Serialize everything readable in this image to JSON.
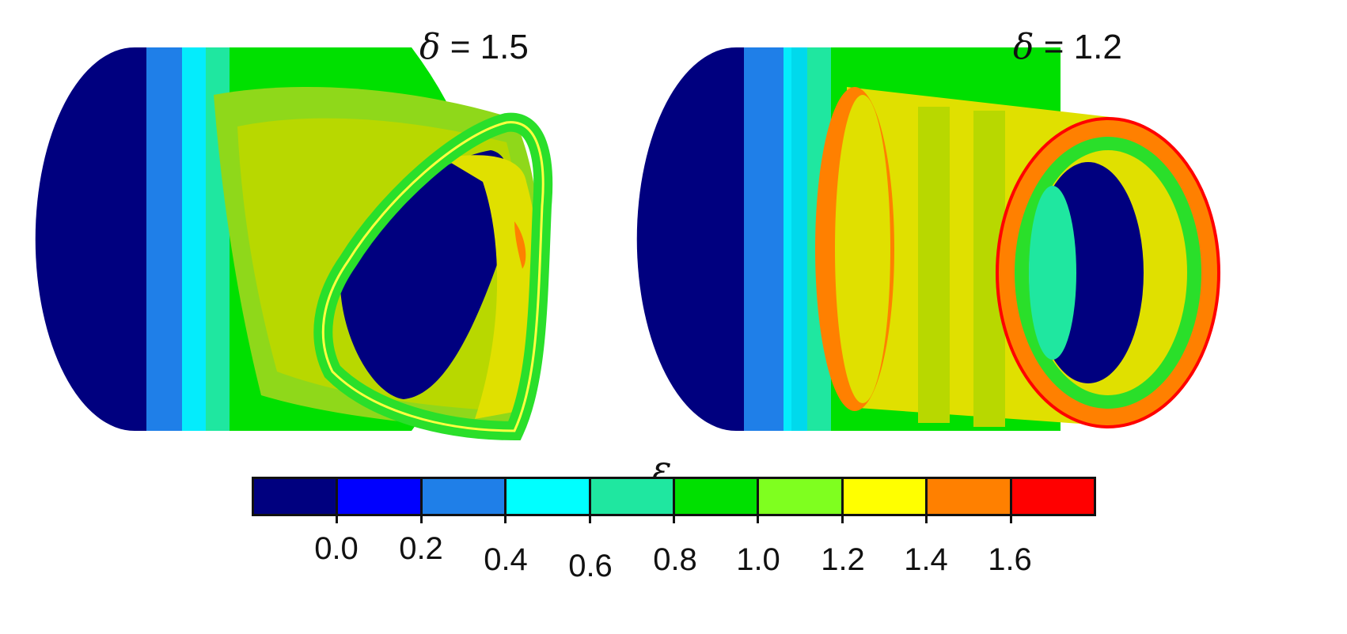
{
  "panels": [
    {
      "delta_symbol": "δ",
      "delta_text": "= 1.5"
    },
    {
      "delta_symbol": "δ",
      "delta_text": "= 1.2"
    }
  ],
  "legend": {
    "symbol": "ε",
    "colors": [
      "#00007f",
      "#0000ff",
      "#1f7fe8",
      "#00ffff",
      "#1fe7a0",
      "#00e000",
      "#7fff1f",
      "#ffff00",
      "#ff8000",
      "#ff0000"
    ],
    "tick_labels": [
      "0.0",
      "0.2",
      "0.4",
      "0.6",
      "0.8",
      "1.0",
      "1.2",
      "1.4",
      "1.6"
    ]
  }
}
